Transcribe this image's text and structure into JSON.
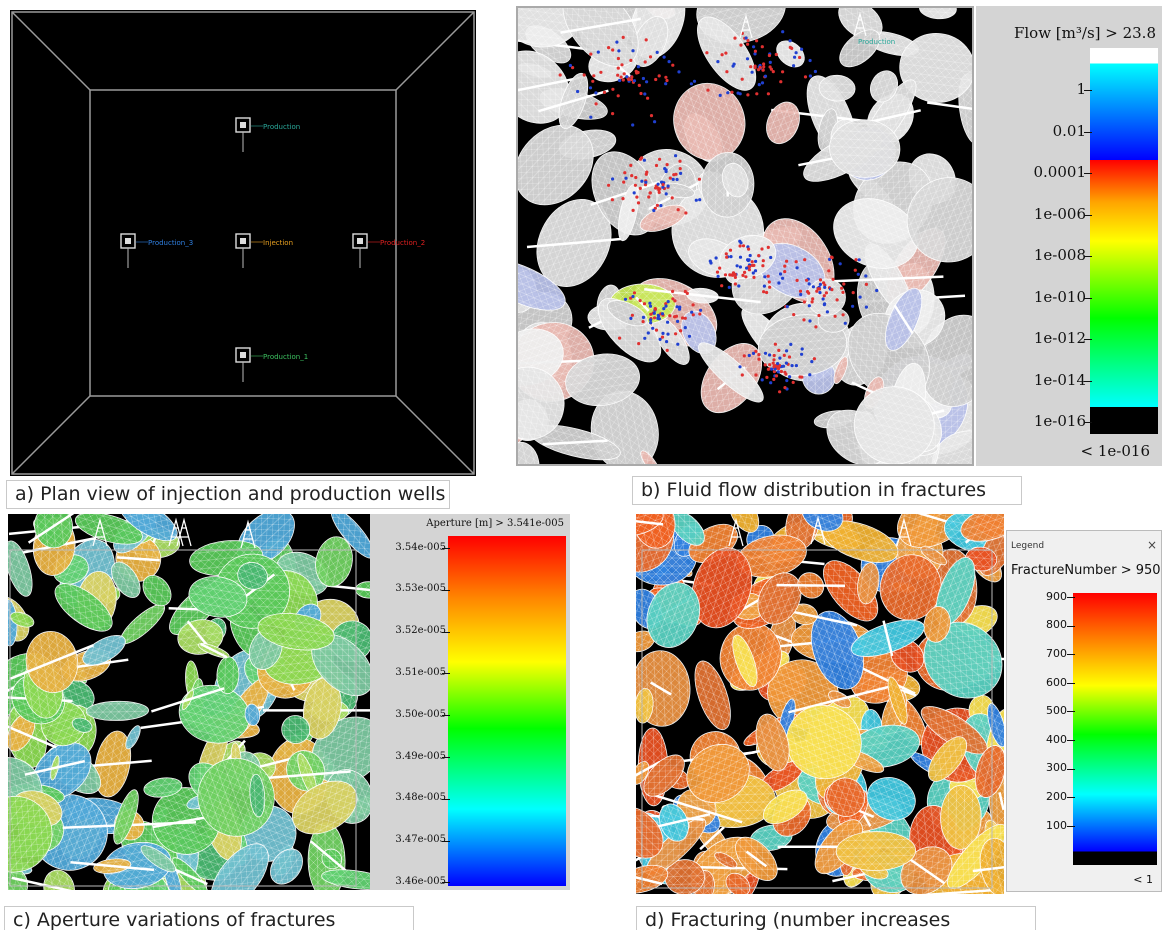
{
  "panel_a": {
    "caption": "a) Plan view of injection and production wells",
    "wells": [
      {
        "name": "Production",
        "color": "#2aa89a"
      },
      {
        "name": "Production_3",
        "color": "#2f7fe0"
      },
      {
        "name": "Injection",
        "color": "#e8a020"
      },
      {
        "name": "Production_2",
        "color": "#e02020"
      },
      {
        "name": "Production_1",
        "color": "#3cc060"
      }
    ]
  },
  "panel_b": {
    "caption": "b) Fluid flow distribution in fractures",
    "well_label": "Production",
    "legend": {
      "title": "Flow [m³/s] > 23.8",
      "ticks": [
        "1",
        "0.01",
        "0.0001",
        "1e-006",
        "1e-008",
        "1e-010",
        "1e-012",
        "1e-014",
        "1e-016"
      ],
      "below_label": "< 1e-016"
    }
  },
  "panel_c": {
    "caption": "c) Aperture variations of fractures",
    "legend": {
      "title": "Aperture [m] > 3.541e-005",
      "ticks": [
        "3.54e-005",
        "3.53e-005",
        "3.52e-005",
        "3.51e-005",
        "3.50e-005",
        "3.49e-005",
        "3.48e-005",
        "3.47e-005",
        "3.46e-005"
      ]
    }
  },
  "panel_d": {
    "caption": "d) Fracturing (number increases",
    "legend": {
      "window_title": "Legend",
      "close_glyph": "×",
      "title": "FractureNumber > 950",
      "ticks": [
        "900",
        "800",
        "700",
        "600",
        "500",
        "400",
        "300",
        "200",
        "100"
      ],
      "below_label": "< 1"
    }
  },
  "colors": {
    "rainbow": [
      "#ff0000",
      "#ff8800",
      "#ffff00",
      "#00ff00",
      "#00ffff",
      "#0000ff"
    ]
  }
}
